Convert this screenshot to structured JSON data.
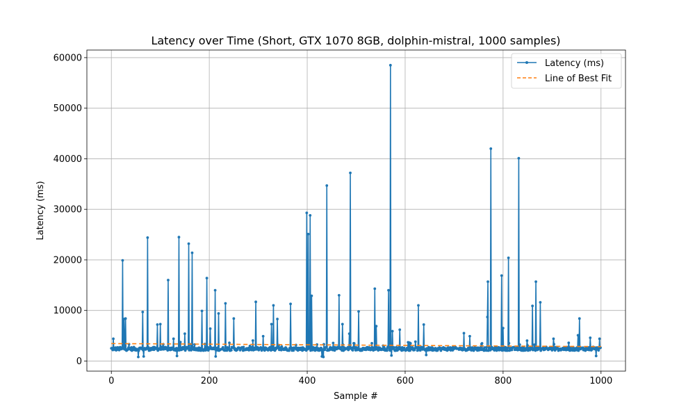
{
  "chart_data": {
    "type": "line",
    "title": "Latency over Time (Short, GTX 1070 8GB, dolphin-mistral, 1000 samples)",
    "xlabel": "Sample #",
    "ylabel": "Latency (ms)",
    "xlim": [
      -50,
      1050
    ],
    "ylim": [
      -2000,
      61500
    ],
    "x_ticks": [
      0,
      200,
      400,
      600,
      800,
      1000
    ],
    "y_ticks": [
      0,
      10000,
      20000,
      30000,
      40000,
      50000,
      60000
    ],
    "grid": true,
    "legend_position": "top-right",
    "baseline_latency": 2400,
    "series": [
      {
        "name": "Latency (ms)",
        "color": "#1f77b4",
        "style": "solid-with-markers",
        "spikes": [
          {
            "x": 4,
            "y": 4400
          },
          {
            "x": 23,
            "y": 19900
          },
          {
            "x": 26,
            "y": 8300
          },
          {
            "x": 29,
            "y": 8400
          },
          {
            "x": 64,
            "y": 9700
          },
          {
            "x": 74,
            "y": 24400
          },
          {
            "x": 94,
            "y": 7200
          },
          {
            "x": 100,
            "y": 7300
          },
          {
            "x": 116,
            "y": 16000
          },
          {
            "x": 127,
            "y": 4400
          },
          {
            "x": 138,
            "y": 24500
          },
          {
            "x": 150,
            "y": 5400
          },
          {
            "x": 158,
            "y": 23200
          },
          {
            "x": 165,
            "y": 21400
          },
          {
            "x": 185,
            "y": 9900
          },
          {
            "x": 195,
            "y": 16400
          },
          {
            "x": 202,
            "y": 6400
          },
          {
            "x": 212,
            "y": 14000
          },
          {
            "x": 219,
            "y": 9400
          },
          {
            "x": 233,
            "y": 11400
          },
          {
            "x": 250,
            "y": 8400
          },
          {
            "x": 295,
            "y": 11700
          },
          {
            "x": 310,
            "y": 4900
          },
          {
            "x": 327,
            "y": 7300
          },
          {
            "x": 331,
            "y": 11000
          },
          {
            "x": 339,
            "y": 8300
          },
          {
            "x": 366,
            "y": 11300
          },
          {
            "x": 399,
            "y": 29300
          },
          {
            "x": 402,
            "y": 25100
          },
          {
            "x": 406,
            "y": 28800
          },
          {
            "x": 409,
            "y": 12900
          },
          {
            "x": 440,
            "y": 34700
          },
          {
            "x": 465,
            "y": 13000
          },
          {
            "x": 472,
            "y": 7300
          },
          {
            "x": 486,
            "y": 5400
          },
          {
            "x": 488,
            "y": 37200
          },
          {
            "x": 505,
            "y": 9800
          },
          {
            "x": 538,
            "y": 14300
          },
          {
            "x": 541,
            "y": 6900
          },
          {
            "x": 566,
            "y": 14000
          },
          {
            "x": 570,
            "y": 58500
          },
          {
            "x": 574,
            "y": 5900
          },
          {
            "x": 589,
            "y": 6200
          },
          {
            "x": 627,
            "y": 11000
          },
          {
            "x": 638,
            "y": 7200
          },
          {
            "x": 720,
            "y": 5500
          },
          {
            "x": 732,
            "y": 4900
          },
          {
            "x": 768,
            "y": 8700
          },
          {
            "x": 769,
            "y": 15700
          },
          {
            "x": 775,
            "y": 42000
          },
          {
            "x": 797,
            "y": 16900
          },
          {
            "x": 800,
            "y": 6500
          },
          {
            "x": 811,
            "y": 20400
          },
          {
            "x": 832,
            "y": 40100
          },
          {
            "x": 860,
            "y": 10900
          },
          {
            "x": 867,
            "y": 15700
          },
          {
            "x": 876,
            "y": 11600
          },
          {
            "x": 903,
            "y": 4400
          },
          {
            "x": 953,
            "y": 5100
          },
          {
            "x": 956,
            "y": 8400
          },
          {
            "x": 978,
            "y": 4600
          },
          {
            "x": 997,
            "y": 4400
          }
        ],
        "dips": [
          {
            "x": 55,
            "y": 800
          },
          {
            "x": 66,
            "y": 900
          },
          {
            "x": 134,
            "y": 1000
          },
          {
            "x": 213,
            "y": 900
          },
          {
            "x": 430,
            "y": 900
          },
          {
            "x": 432,
            "y": 1000
          },
          {
            "x": 433,
            "y": 800
          },
          {
            "x": 572,
            "y": 1100
          },
          {
            "x": 643,
            "y": 1200
          },
          {
            "x": 990,
            "y": 1000
          }
        ]
      },
      {
        "name": "Line of Best Fit",
        "color": "#ff7f0e",
        "style": "dashed",
        "x": [
          0,
          1000
        ],
        "y": [
          3450,
          2850
        ]
      }
    ]
  }
}
